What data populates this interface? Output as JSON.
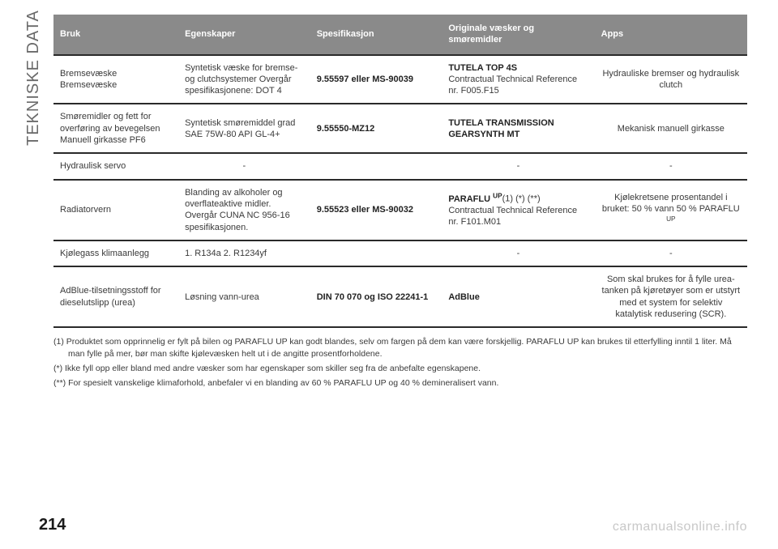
{
  "sideLabel": "TEKNISKE DATA",
  "pageNumber": "214",
  "watermark": "carmanualsonline.info",
  "headers": [
    "Bruk",
    "Egenskaper",
    "Spesifikasjon",
    "Originale væsker og smøremidler",
    "Apps"
  ],
  "rows": {
    "r1": {
      "bruk": "Bremsevæske Bremsevæske",
      "egenskaper": "Syntetisk væske for bremse- og clutchsystemer Overgår spesifikasjonene: DOT 4",
      "spesifikasjon": "9.55597 eller MS-90039",
      "orig_bold": "TUTELA TOP 4S",
      "orig_rest": "Contractual Technical Reference nr. F005.F15",
      "apps": "Hydrauliske bremser og hydraulisk clutch"
    },
    "r2": {
      "bruk": "Smøremidler og fett for overføring av bevegelsen Manuell girkasse PF6",
      "egenskaper": "Syntetisk smøremiddel grad SAE 75W-80 API GL-4+",
      "spesifikasjon": "9.55550-MZ12",
      "orig_bold": "TUTELA TRANSMISSION GEARSYNTH MT",
      "apps": "Mekanisk manuell girkasse"
    },
    "r3": {
      "bruk": "Hydraulisk servo",
      "egenskaper": "-",
      "orig": "-",
      "apps": "-"
    },
    "r4": {
      "bruk": "Radiatorvern",
      "egenskaper": "Blanding av alkoholer og overflateaktive midler. Overgår CUNA NC 956-16 spesifikasjonen.",
      "spesifikasjon": "9.55523 eller MS-90032",
      "orig_bold": "PARAFLU",
      "orig_sup": "UP",
      "orig_after": "(1) (*) (**)",
      "orig_rest": "Contractual Technical Reference nr. F101.M01",
      "apps_pre": "Kjølekretsene prosentandel i bruket: 50 % vann 50 % PARAFLU",
      "apps_sup": "UP"
    },
    "r5": {
      "bruk": "Kjølegass klimaanlegg",
      "egenskaper": "1. R134a 2. R1234yf",
      "orig": "-",
      "apps": "-"
    },
    "r6": {
      "bruk": "AdBlue-tilsetningsstoff for dieselutslipp (urea)",
      "egenskaper": "Løsning vann-urea",
      "spesifikasjon": "DIN 70 070 og ISO 22241-1",
      "orig_bold": "AdBlue",
      "apps": "Som skal brukes for å fylle urea-tanken på kjøretøyer som er utstyrt med et system for selektiv katalytisk redusering (SCR)."
    }
  },
  "footnotes": {
    "f1": "(1) Produktet som opprinnelig er fylt på bilen og PARAFLU UP kan godt blandes, selv om fargen på dem kan være forskjellig. PARAFLU UP kan brukes til etterfylling inntil 1 liter. Må man fylle på mer, bør man skifte kjølevæsken helt ut i de angitte prosentforholdene.",
    "f2": "(*) Ikke fyll opp eller bland med andre væsker som har egenskaper som skiller seg fra de anbefalte egenskapene.",
    "f3": "(**) For spesielt vanskelige klimaforhold, anbefaler vi en blanding av 60 % PARAFLU UP og 40 % demineralisert vann."
  }
}
